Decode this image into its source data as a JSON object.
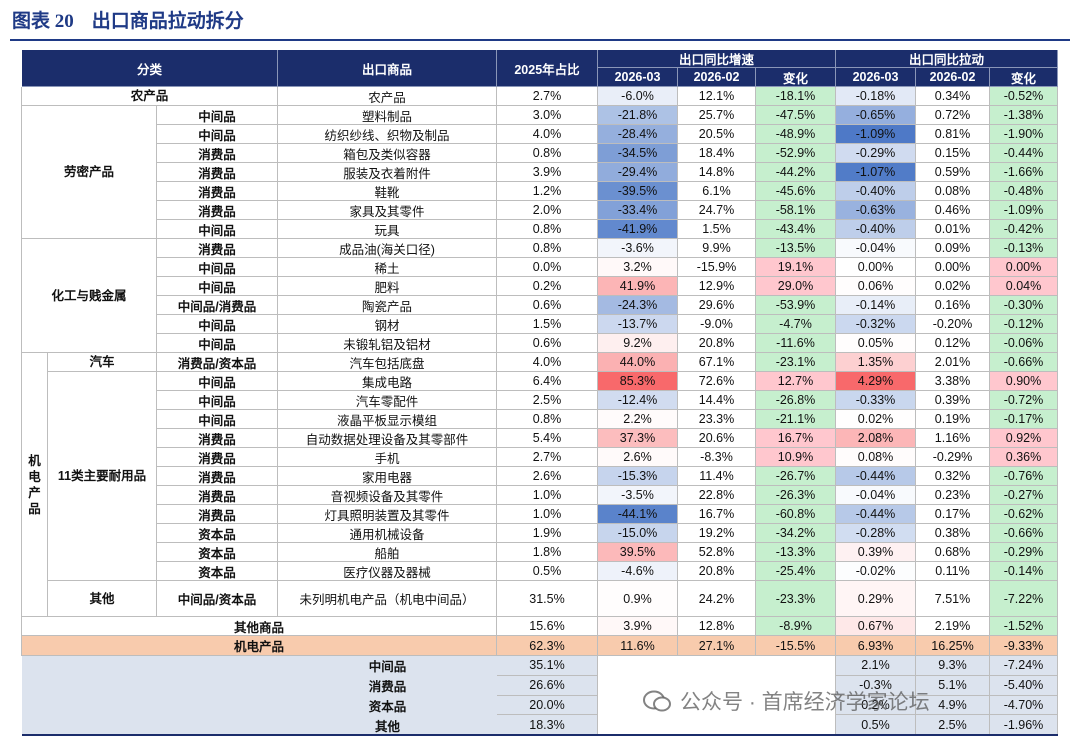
{
  "header": {
    "label": "图表 20",
    "title": "出口商品拉动拆分"
  },
  "table": {
    "columns": {
      "category": "分类",
      "product": "出口商品",
      "share": "2025年占比",
      "growth": "出口同比增速",
      "pull": "出口同比拉动",
      "sub": [
        "2026-03",
        "2026-02",
        "变化"
      ]
    },
    "sections": [
      {
        "label": "农产品",
        "rows": [
          {
            "product": "农产品",
            "share": "2.7%",
            "growth": [
              "-6.0%",
              "12.1%",
              "-18.1%"
            ],
            "pull": [
              "-0.18%",
              "0.34%",
              "-0.52%"
            ]
          }
        ]
      },
      {
        "label": "劳密产品",
        "rows": [
          {
            "type": "中间品",
            "product": "塑料制品",
            "share": "3.0%",
            "growth": [
              "-21.8%",
              "25.7%",
              "-47.5%"
            ],
            "pull": [
              "-0.65%",
              "0.72%",
              "-1.38%"
            ]
          },
          {
            "type": "中间品",
            "product": "纺织纱线、织物及制品",
            "share": "4.0%",
            "growth": [
              "-28.4%",
              "20.5%",
              "-48.9%"
            ],
            "pull": [
              "-1.09%",
              "0.81%",
              "-1.90%"
            ]
          },
          {
            "type": "消费品",
            "product": "箱包及类似容器",
            "share": "0.8%",
            "growth": [
              "-34.5%",
              "18.4%",
              "-52.9%"
            ],
            "pull": [
              "-0.29%",
              "0.15%",
              "-0.44%"
            ]
          },
          {
            "type": "消费品",
            "product": "服装及衣着附件",
            "share": "3.9%",
            "growth": [
              "-29.4%",
              "14.8%",
              "-44.2%"
            ],
            "pull": [
              "-1.07%",
              "0.59%",
              "-1.66%"
            ]
          },
          {
            "type": "消费品",
            "product": "鞋靴",
            "share": "1.2%",
            "growth": [
              "-39.5%",
              "6.1%",
              "-45.6%"
            ],
            "pull": [
              "-0.40%",
              "0.08%",
              "-0.48%"
            ]
          },
          {
            "type": "消费品",
            "product": "家具及其零件",
            "share": "2.0%",
            "growth": [
              "-33.4%",
              "24.7%",
              "-58.1%"
            ],
            "pull": [
              "-0.63%",
              "0.46%",
              "-1.09%"
            ]
          },
          {
            "type": "中间品",
            "product": "玩具",
            "share": "0.8%",
            "growth": [
              "-41.9%",
              "1.5%",
              "-43.4%"
            ],
            "pull": [
              "-0.40%",
              "0.01%",
              "-0.42%"
            ]
          }
        ]
      },
      {
        "label": "化工与贱金属",
        "rows": [
          {
            "type": "消费品",
            "product": "成品油(海关口径)",
            "share": "0.8%",
            "growth": [
              "-3.6%",
              "9.9%",
              "-13.5%"
            ],
            "pull": [
              "-0.04%",
              "0.09%",
              "-0.13%"
            ]
          },
          {
            "type": "中间品",
            "product": "稀土",
            "share": "0.0%",
            "growth": [
              "3.2%",
              "-15.9%",
              "19.1%"
            ],
            "pull": [
              "0.00%",
              "0.00%",
              "0.00%"
            ]
          },
          {
            "type": "中间品",
            "product": "肥料",
            "share": "0.2%",
            "growth": [
              "41.9%",
              "12.9%",
              "29.0%"
            ],
            "pull": [
              "0.06%",
              "0.02%",
              "0.04%"
            ]
          },
          {
            "type": "中间品/消费品",
            "product": "陶瓷产品",
            "share": "0.6%",
            "growth": [
              "-24.3%",
              "29.6%",
              "-53.9%"
            ],
            "pull": [
              "-0.14%",
              "0.16%",
              "-0.30%"
            ]
          },
          {
            "type": "中间品",
            "product": "钢材",
            "share": "1.5%",
            "growth": [
              "-13.7%",
              "-9.0%",
              "-4.7%"
            ],
            "pull": [
              "-0.32%",
              "-0.20%",
              "-0.12%"
            ]
          },
          {
            "type": "中间品",
            "product": "未锻轧铝及铝材",
            "share": "0.6%",
            "growth": [
              "9.2%",
              "20.8%",
              "-11.6%"
            ],
            "pull": [
              "0.05%",
              "0.12%",
              "-0.06%"
            ]
          }
        ]
      },
      {
        "label": "机电产品",
        "subsections": [
          {
            "label": "汽车",
            "rows": [
              {
                "type": "消费品/资本品",
                "product": "汽车包括底盘",
                "share": "4.0%",
                "growth": [
                  "44.0%",
                  "67.1%",
                  "-23.1%"
                ],
                "pull": [
                  "1.35%",
                  "2.01%",
                  "-0.66%"
                ]
              }
            ]
          },
          {
            "label": "11类主要耐用品",
            "rows": [
              {
                "type": "中间品",
                "product": "集成电路",
                "share": "6.4%",
                "growth": [
                  "85.3%",
                  "72.6%",
                  "12.7%"
                ],
                "pull": [
                  "4.29%",
                  "3.38%",
                  "0.90%"
                ]
              },
              {
                "type": "中间品",
                "product": "汽车零配件",
                "share": "2.5%",
                "growth": [
                  "-12.4%",
                  "14.4%",
                  "-26.8%"
                ],
                "pull": [
                  "-0.33%",
                  "0.39%",
                  "-0.72%"
                ]
              },
              {
                "type": "中间品",
                "product": "液晶平板显示模组",
                "share": "0.8%",
                "growth": [
                  "2.2%",
                  "23.3%",
                  "-21.1%"
                ],
                "pull": [
                  "0.02%",
                  "0.19%",
                  "-0.17%"
                ]
              },
              {
                "type": "消费品",
                "product": "自动数据处理设备及其零部件",
                "share": "5.4%",
                "growth": [
                  "37.3%",
                  "20.6%",
                  "16.7%"
                ],
                "pull": [
                  "2.08%",
                  "1.16%",
                  "0.92%"
                ]
              },
              {
                "type": "消费品",
                "product": "手机",
                "share": "2.7%",
                "growth": [
                  "2.6%",
                  "-8.3%",
                  "10.9%"
                ],
                "pull": [
                  "0.08%",
                  "-0.29%",
                  "0.36%"
                ]
              },
              {
                "type": "消费品",
                "product": "家用电器",
                "share": "2.6%",
                "growth": [
                  "-15.3%",
                  "11.4%",
                  "-26.7%"
                ],
                "pull": [
                  "-0.44%",
                  "0.32%",
                  "-0.76%"
                ]
              },
              {
                "type": "消费品",
                "product": "音视频设备及其零件",
                "share": "1.0%",
                "growth": [
                  "-3.5%",
                  "22.8%",
                  "-26.3%"
                ],
                "pull": [
                  "-0.04%",
                  "0.23%",
                  "-0.27%"
                ]
              },
              {
                "type": "消费品",
                "product": "灯具照明装置及其零件",
                "share": "1.0%",
                "growth": [
                  "-44.1%",
                  "16.7%",
                  "-60.8%"
                ],
                "pull": [
                  "-0.44%",
                  "0.17%",
                  "-0.62%"
                ]
              },
              {
                "type": "资本品",
                "product": "通用机械设备",
                "share": "1.9%",
                "growth": [
                  "-15.0%",
                  "19.2%",
                  "-34.2%"
                ],
                "pull": [
                  "-0.28%",
                  "0.38%",
                  "-0.66%"
                ]
              },
              {
                "type": "资本品",
                "product": "船舶",
                "share": "1.8%",
                "growth": [
                  "39.5%",
                  "52.8%",
                  "-13.3%"
                ],
                "pull": [
                  "0.39%",
                  "0.68%",
                  "-0.29%"
                ]
              },
              {
                "type": "资本品",
                "product": "医疗仪器及器械",
                "share": "0.5%",
                "growth": [
                  "-4.6%",
                  "20.8%",
                  "-25.4%"
                ],
                "pull": [
                  "-0.02%",
                  "0.11%",
                  "-0.14%"
                ]
              }
            ]
          },
          {
            "label": "其他",
            "rows": [
              {
                "type": "中间品/资本品",
                "product": "未列明机电产品（机电中间品）",
                "share": "31.5%",
                "growth": [
                  "0.9%",
                  "24.2%",
                  "-23.3%"
                ],
                "pull": [
                  "0.29%",
                  "7.51%",
                  "-7.22%"
                ]
              }
            ]
          }
        ]
      }
    ],
    "totals": [
      {
        "label": "其他商品",
        "share": "15.6%",
        "growth": [
          "3.9%",
          "12.8%",
          "-8.9%"
        ],
        "pull": [
          "0.67%",
          "2.19%",
          "-1.52%"
        ]
      },
      {
        "label": "机电产品",
        "share": "62.3%",
        "growth": [
          "11.6%",
          "27.1%",
          "-15.5%"
        ],
        "pull": [
          "6.93%",
          "16.25%",
          "-9.33%"
        ]
      }
    ],
    "summary": [
      {
        "label": "中间品",
        "share": "35.1%",
        "pull": [
          "2.1%",
          "9.3%",
          "-7.24%"
        ]
      },
      {
        "label": "消费品",
        "share": "26.6%",
        "pull": [
          "-0.3%",
          "5.1%",
          "-5.40%"
        ]
      },
      {
        "label": "资本品",
        "share": "20.0%",
        "pull": [
          "0.2%",
          "4.9%",
          "-4.70%"
        ]
      },
      {
        "label": "其他",
        "share": "18.3%",
        "pull": [
          "0.5%",
          "2.5%",
          "-1.96%"
        ]
      }
    ]
  },
  "watermark": "公众号 · 首席经济学家论坛"
}
